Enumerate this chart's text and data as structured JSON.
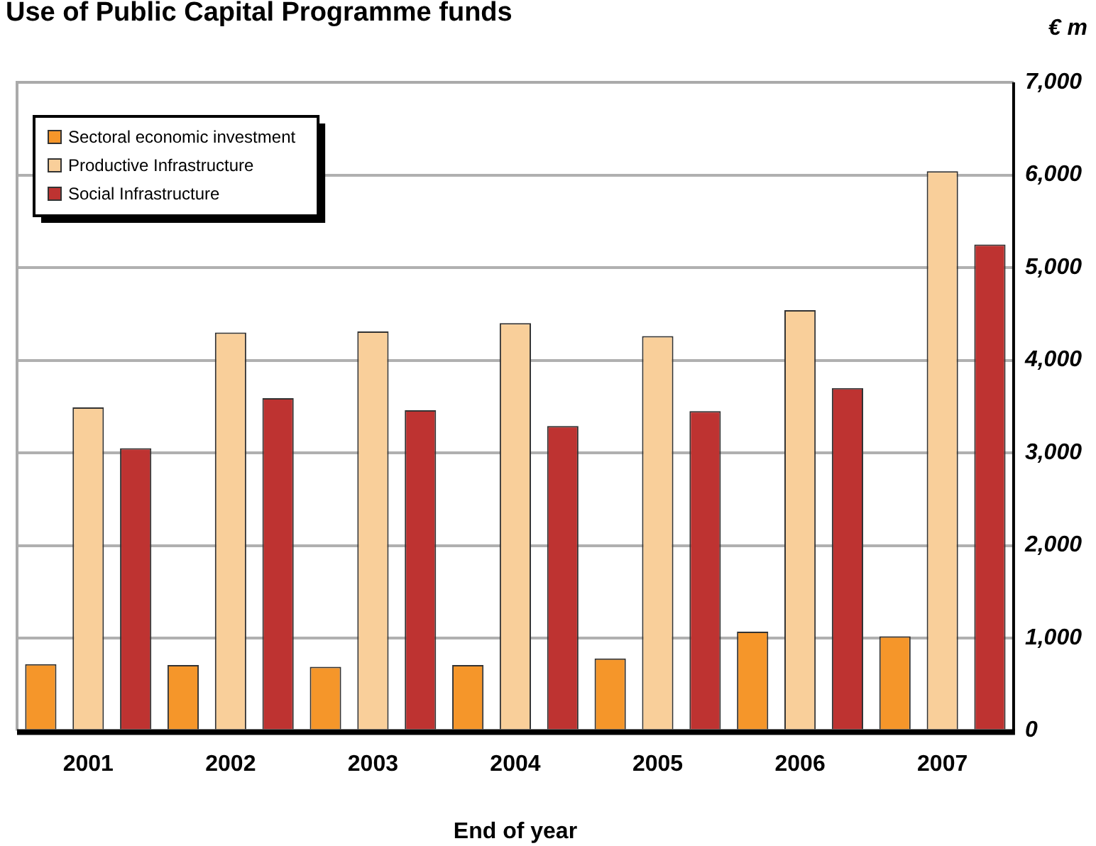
{
  "chart_data": {
    "type": "bar",
    "title": "Use of Public Capital Programme funds",
    "ylabel": "€ m",
    "xlabel": "End of year",
    "categories": [
      "2001",
      "2002",
      "2003",
      "2004",
      "2005",
      "2006",
      "2007"
    ],
    "series": [
      {
        "name": "Sectoral economic investment",
        "color": "#f5962a",
        "values": [
          720,
          710,
          690,
          710,
          780,
          1070,
          1020
        ]
      },
      {
        "name": "Productive Infrastructure",
        "color": "#f9cf9a",
        "values": [
          3490,
          4300,
          4310,
          4400,
          4260,
          4540,
          6040
        ]
      },
      {
        "name": "Social Infrastructure",
        "color": "#be3331",
        "values": [
          3050,
          3590,
          3460,
          3290,
          3450,
          3700,
          5250
        ]
      }
    ],
    "ylim": [
      0,
      7000
    ],
    "yticks": [
      {
        "value": 0,
        "label": "0"
      },
      {
        "value": 1000,
        "label": "1,000"
      },
      {
        "value": 2000,
        "label": "2,000"
      },
      {
        "value": 3000,
        "label": "3,000"
      },
      {
        "value": 4000,
        "label": "4,000"
      },
      {
        "value": 5000,
        "label": "5,000"
      },
      {
        "value": 6000,
        "label": "6,000"
      },
      {
        "value": 7000,
        "label": "7,000"
      }
    ],
    "grid": "y",
    "legend": "top left"
  }
}
